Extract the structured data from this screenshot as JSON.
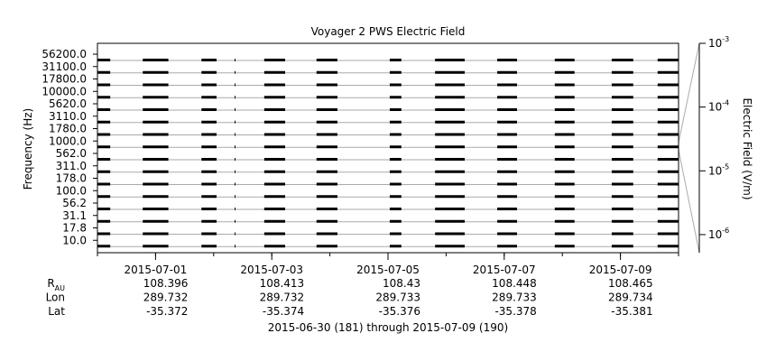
{
  "chart_data": {
    "type": "stacked-line",
    "title": "Voyager 2 PWS Electric Field",
    "ylabel": "Frequency (Hz)",
    "y2label": "Electric Field (V/m)",
    "channels": [
      "56200.0",
      "31100.0",
      "17800.0",
      "10000.0",
      "5620.0",
      "3110.0",
      "1780.0",
      "1000.0",
      "562.0",
      "311.0",
      "178.0",
      "100.0",
      "56.2",
      "31.1",
      "17.8",
      "10.0"
    ],
    "color": "#000000",
    "intervals": [
      [
        181.0,
        181.22
      ],
      [
        181.78,
        182.22
      ],
      [
        182.79,
        183.05
      ],
      [
        183.36,
        183.37
      ],
      [
        183.87,
        184.23
      ],
      [
        184.77,
        185.13
      ],
      [
        186.03,
        186.23
      ],
      [
        186.81,
        187.32
      ],
      [
        187.88,
        188.22
      ],
      [
        188.87,
        189.21
      ],
      [
        189.85,
        190.22
      ],
      [
        190.64,
        191.0
      ]
    ],
    "xlim": [
      181,
      191
    ],
    "xticks": [
      {
        "value": 182,
        "label": "2015-07-01"
      },
      {
        "value": 184,
        "label": "2015-07-03"
      },
      {
        "value": 186,
        "label": "2015-07-05"
      },
      {
        "value": 188,
        "label": "2015-07-07"
      },
      {
        "value": 190,
        "label": "2015-07-09"
      }
    ],
    "xminorticks": [
      181,
      182,
      183,
      184,
      185,
      186,
      187,
      188,
      189,
      190,
      191
    ],
    "y2lim": [
      5.2e-07,
      0.001
    ],
    "y2log": true,
    "y2ticks": [
      {
        "value": 0.001,
        "label": "10^-3"
      },
      {
        "value": 0.0001,
        "label": "10^-4"
      },
      {
        "value": 1e-05,
        "label": "10^-5"
      },
      {
        "value": 1e-06,
        "label": "10^-6"
      }
    ],
    "grid": true,
    "ephemeris": [
      {
        "name": "R_AU",
        "values": [
          108.396,
          108.413,
          108.43,
          108.448,
          108.465
        ]
      },
      {
        "name": "Lon",
        "values": [
          289.732,
          289.732,
          289.733,
          289.733,
          289.734
        ]
      },
      {
        "name": "Lat",
        "values": [
          -35.372,
          -35.374,
          -35.376,
          -35.378,
          -35.381
        ]
      }
    ],
    "footer": "2015-06-30 (181) through 2015-07-09 (190)"
  }
}
